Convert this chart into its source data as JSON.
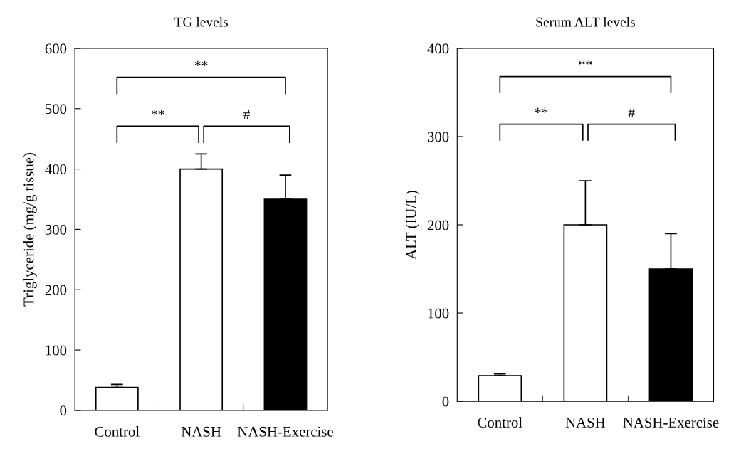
{
  "chart_data": [
    {
      "type": "bar",
      "title": "TG levels",
      "ylabel": "Triglyceride (mg/g tissue)",
      "categories": [
        "Control",
        "NASH",
        "NASH-Exercise"
      ],
      "values": [
        38,
        400,
        350
      ],
      "errors": [
        5,
        25,
        40
      ],
      "colors": [
        "#ffffff",
        "#ffffff",
        "#000000"
      ],
      "ylim": [
        0,
        600
      ],
      "yticks": [
        0,
        100,
        200,
        300,
        400,
        500,
        600
      ],
      "grid": false,
      "legend": false,
      "annotations": [
        "**",
        "**",
        "#"
      ]
    },
    {
      "type": "bar",
      "title": "Serum ALT levels",
      "ylabel": "ALT (IU/L)",
      "categories": [
        "Control",
        "NASH",
        "NASH-Exercise"
      ],
      "values": [
        29,
        200,
        150
      ],
      "errors": [
        2,
        50,
        40
      ],
      "colors": [
        "#ffffff",
        "#ffffff",
        "#000000"
      ],
      "ylim": [
        0,
        400
      ],
      "yticks": [
        0,
        100,
        200,
        300,
        400
      ],
      "grid": false,
      "legend": false,
      "annotations": [
        "**",
        "**",
        "#"
      ]
    }
  ]
}
